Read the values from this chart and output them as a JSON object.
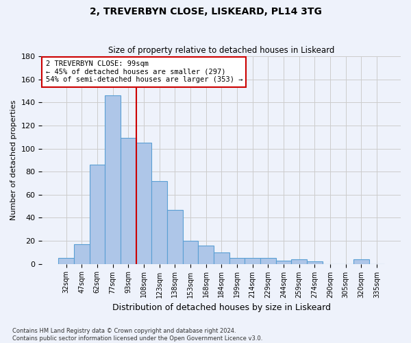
{
  "title_line1": "2, TREVERBYN CLOSE, LISKEARD, PL14 3TG",
  "title_line2": "Size of property relative to detached houses in Liskeard",
  "xlabel": "Distribution of detached houses by size in Liskeard",
  "ylabel": "Number of detached properties",
  "footnote": "Contains HM Land Registry data © Crown copyright and database right 2024.\nContains public sector information licensed under the Open Government Licence v3.0.",
  "bar_labels": [
    "32sqm",
    "47sqm",
    "62sqm",
    "77sqm",
    "93sqm",
    "108sqm",
    "123sqm",
    "138sqm",
    "153sqm",
    "168sqm",
    "184sqm",
    "199sqm",
    "214sqm",
    "229sqm",
    "244sqm",
    "259sqm",
    "274sqm",
    "290sqm",
    "305sqm",
    "320sqm",
    "335sqm"
  ],
  "bar_values": [
    5,
    17,
    86,
    146,
    109,
    105,
    72,
    47,
    20,
    16,
    10,
    5,
    5,
    5,
    3,
    4,
    2,
    0,
    0,
    4,
    0
  ],
  "bar_color": "#aec6e8",
  "bar_edge_color": "#5a9fd4",
  "background_color": "#eef2fb",
  "grid_color": "#cccccc",
  "property_label": "2 TREVERBYN CLOSE: 99sqm",
  "annotation_line1": "← 45% of detached houses are smaller (297)",
  "annotation_line2": "54% of semi-detached houses are larger (353) →",
  "vline_color": "#cc0000",
  "vline_x": 4.5,
  "ylim": [
    0,
    180
  ],
  "yticks": [
    0,
    20,
    40,
    60,
    80,
    100,
    120,
    140,
    160,
    180
  ]
}
